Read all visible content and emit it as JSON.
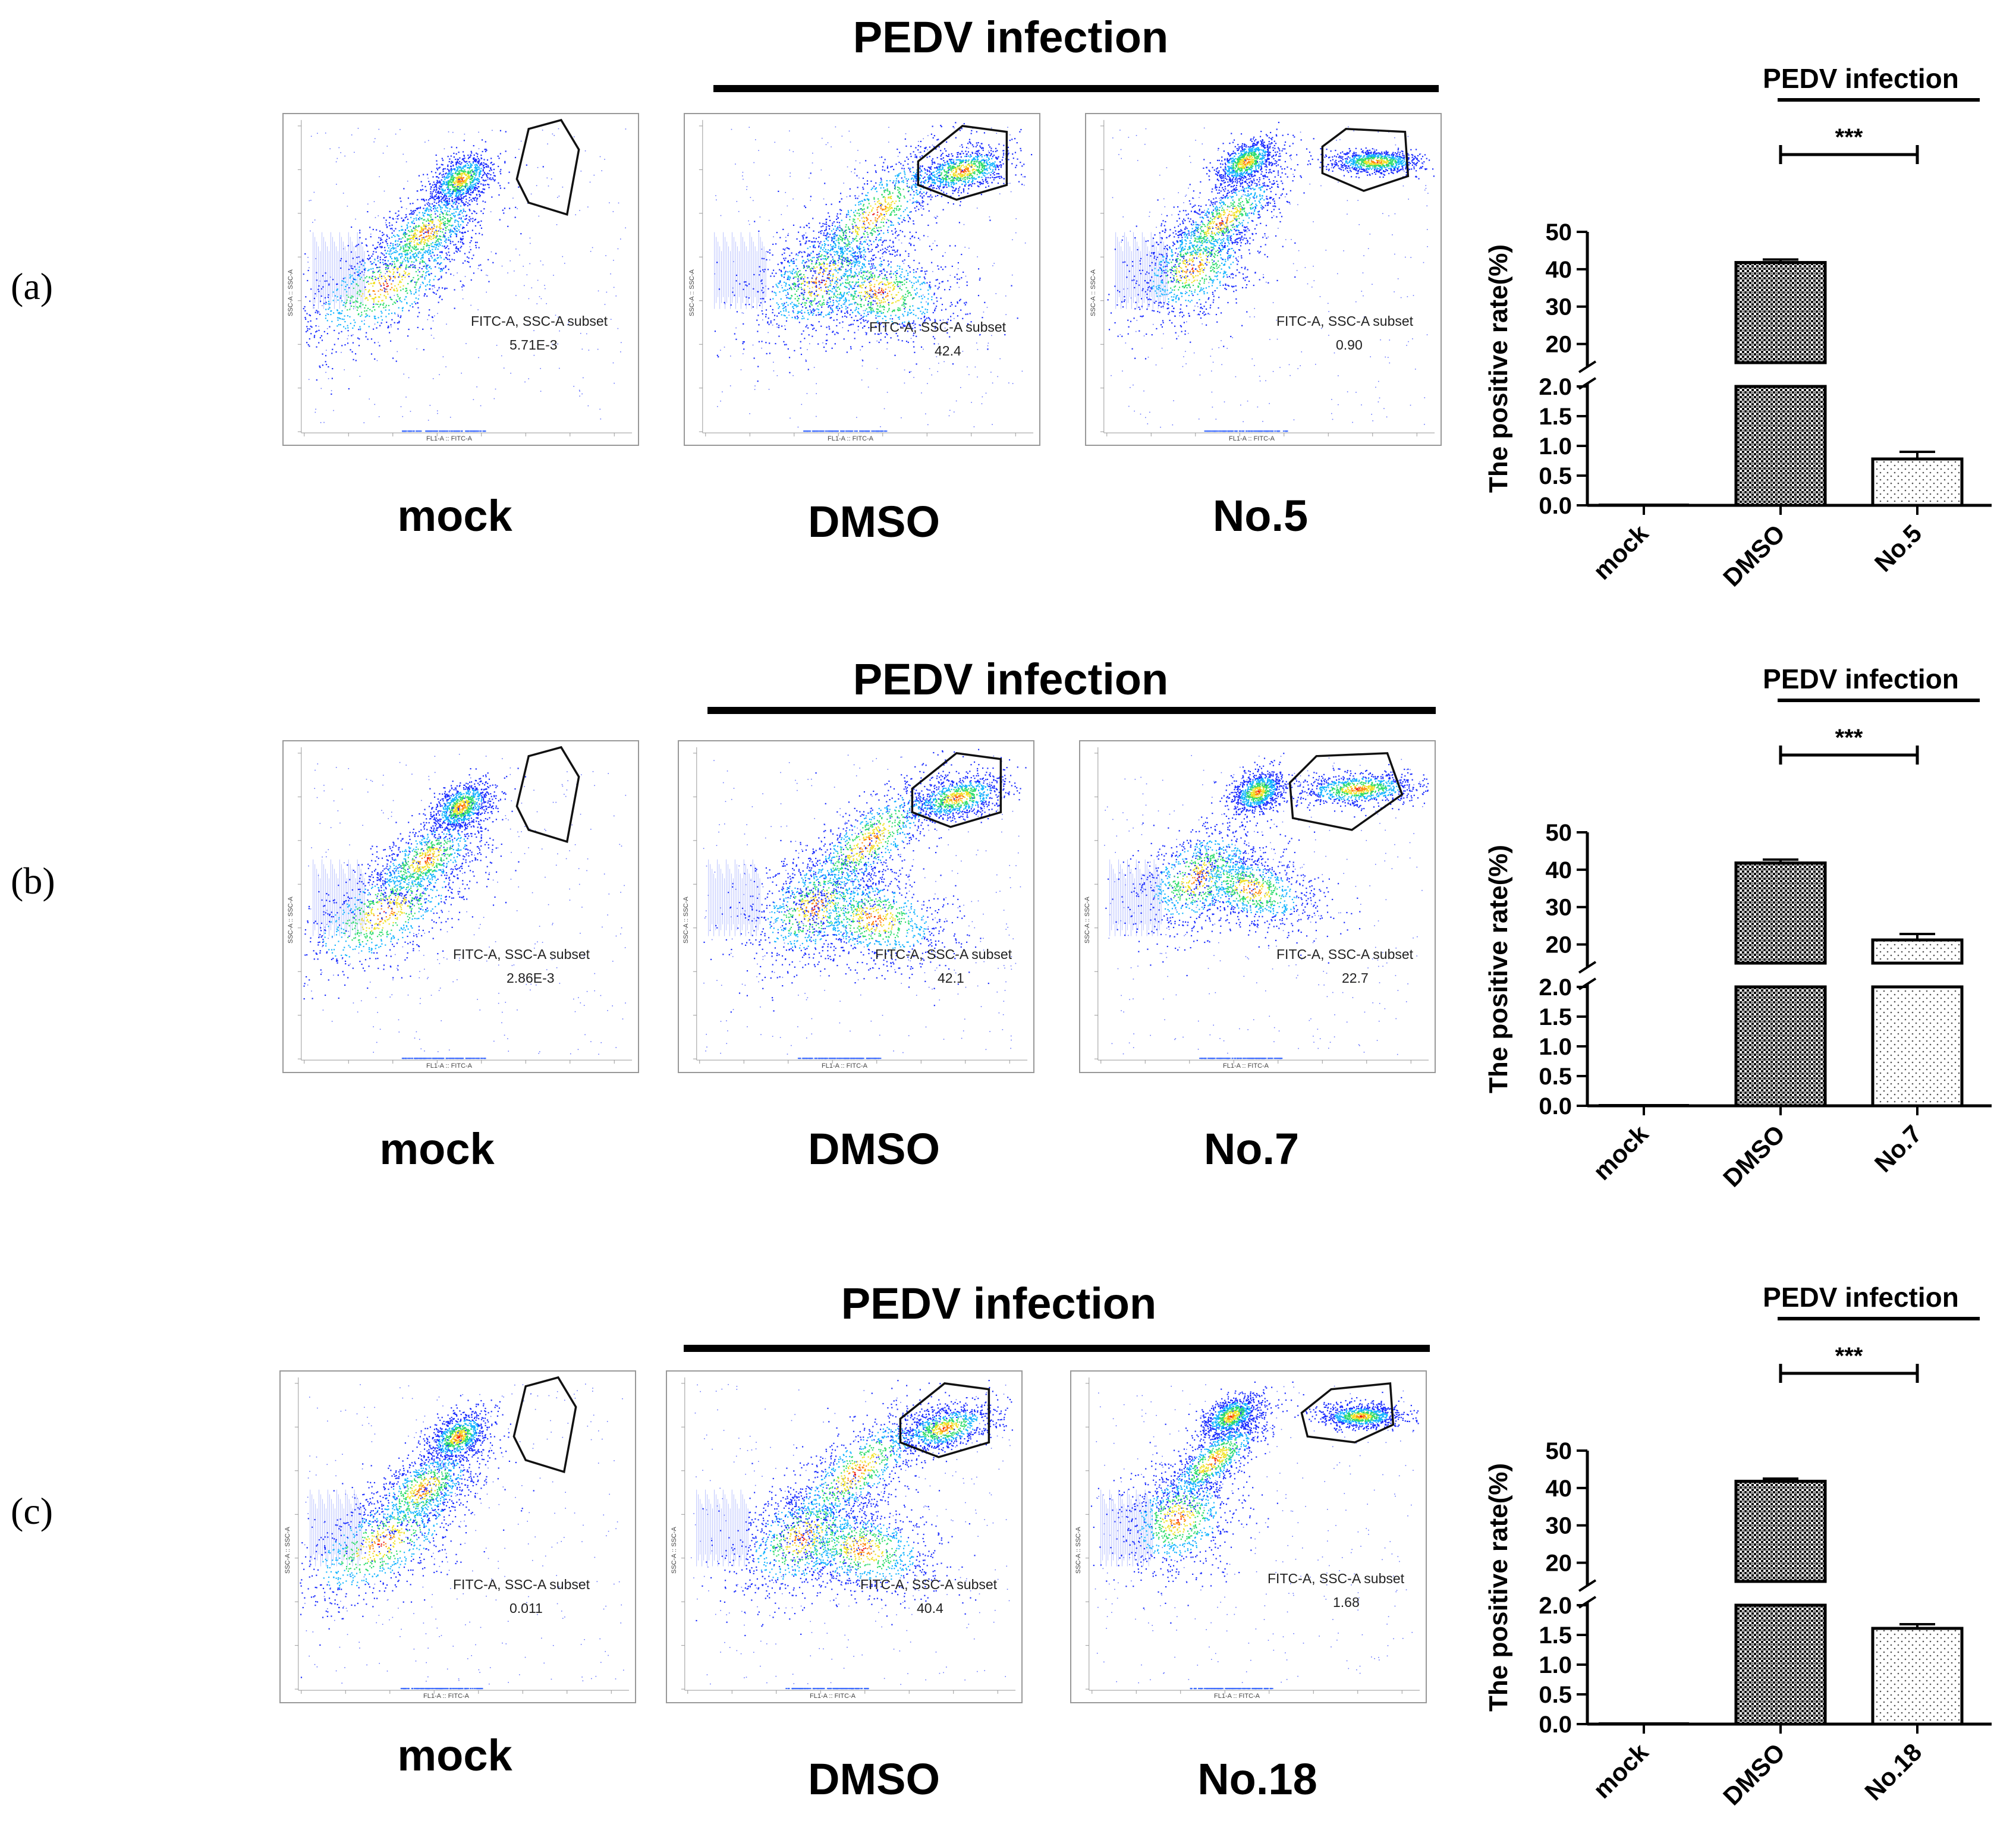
{
  "figure": {
    "rows": [
      {
        "panel_label": "(a)",
        "top_label": "PEDV infection",
        "plots": [
          {
            "condition": "mock",
            "subset_label": "FITC-A, SSC-A subset",
            "subset_value": "5.71E-3",
            "x_axis": "FL1-A :: FITC-A",
            "y_axis": "SSC-A :: SSC-A"
          },
          {
            "condition": "DMSO",
            "subset_label": "FITC-A, SSC-A subset",
            "subset_value": "42.4",
            "x_axis": "FL1-A :: FITC-A",
            "y_axis": "SSC-A :: SSC-A"
          },
          {
            "condition": "No.5",
            "subset_label": "FITC-A, SSC-A subset",
            "subset_value": "0.90",
            "x_axis": "FL1-A :: FITC-A",
            "y_axis": "SSC-A :: SSC-A"
          }
        ]
      },
      {
        "panel_label": "(b)",
        "top_label": "PEDV infection",
        "plots": [
          {
            "condition": "mock",
            "subset_label": "FITC-A, SSC-A subset",
            "subset_value": "2.86E-3",
            "x_axis": "FL1-A :: FITC-A",
            "y_axis": "SSC-A :: SSC-A"
          },
          {
            "condition": "DMSO",
            "subset_label": "FITC-A, SSC-A subset",
            "subset_value": "42.1",
            "x_axis": "FL1-A :: FITC-A",
            "y_axis": "SSC-A :: SSC-A"
          },
          {
            "condition": "No.7",
            "subset_label": "FITC-A, SSC-A subset",
            "subset_value": "22.7",
            "x_axis": "FL1-A :: FITC-A",
            "y_axis": "SSC-A :: SSC-A"
          }
        ]
      },
      {
        "panel_label": "(c)",
        "top_label": "PEDV infection",
        "plots": [
          {
            "condition": "mock",
            "subset_label": "FITC-A, SSC-A subset",
            "subset_value": "0.011",
            "x_axis": "FL1-A :: FITC-A",
            "y_axis": "SSC-A :: SSC-A"
          },
          {
            "condition": "DMSO",
            "subset_label": "FITC-A, SSC-A subset",
            "subset_value": "40.4",
            "x_axis": "FL1-A :: FITC-A",
            "y_axis": "SSC-A :: SSC-A"
          },
          {
            "condition": "No.18",
            "subset_label": "FITC-A, SSC-A subset",
            "subset_value": "1.68",
            "x_axis": "FL1-A :: FITC-A",
            "y_axis": "SSC-A :: SSC-A"
          }
        ]
      }
    ]
  },
  "chart_data": [
    {
      "type": "bar",
      "title": "PEDV infection",
      "ylabel": "The positive rate(%)",
      "categories": [
        "mock",
        "DMSO",
        "No.5"
      ],
      "values": [
        0.02,
        41.8,
        0.78
      ],
      "errors": [
        0.0,
        0.8,
        0.12
      ],
      "y_break": {
        "lower": [
          0,
          2
        ],
        "upper": [
          15,
          50
        ]
      },
      "lower_ticks": [
        "0.0",
        "0.5",
        "1.0",
        "1.5",
        "2.0"
      ],
      "upper_ticks": [
        "20",
        "30",
        "40",
        "50"
      ],
      "significance": "***",
      "patterns": [
        "solid",
        "dense",
        "sparse"
      ]
    },
    {
      "type": "bar",
      "title": "PEDV infection",
      "ylabel": "The positive rate(%)",
      "categories": [
        "mock",
        "DMSO",
        "No.7"
      ],
      "values": [
        0.02,
        41.8,
        21.2
      ],
      "errors": [
        0.0,
        0.9,
        1.6
      ],
      "y_break": {
        "lower": [
          0,
          2
        ],
        "upper": [
          15,
          50
        ]
      },
      "lower_ticks": [
        "0.0",
        "0.5",
        "1.0",
        "1.5",
        "2.0"
      ],
      "upper_ticks": [
        "20",
        "30",
        "40",
        "50"
      ],
      "significance": "***",
      "patterns": [
        "solid",
        "dense",
        "sparse"
      ]
    },
    {
      "type": "bar",
      "title": "PEDV infection",
      "ylabel": "The positive rate(%)",
      "categories": [
        "mock",
        "DMSO",
        "No.18"
      ],
      "values": [
        0.02,
        41.8,
        1.61
      ],
      "errors": [
        0.0,
        0.7,
        0.07
      ],
      "y_break": {
        "lower": [
          0,
          2
        ],
        "upper": [
          15,
          50
        ]
      },
      "lower_ticks": [
        "0.0",
        "0.5",
        "1.0",
        "1.5",
        "2.0"
      ],
      "upper_ticks": [
        "20",
        "30",
        "40",
        "50"
      ],
      "significance": "***",
      "patterns": [
        "solid",
        "dense",
        "sparse"
      ]
    }
  ]
}
